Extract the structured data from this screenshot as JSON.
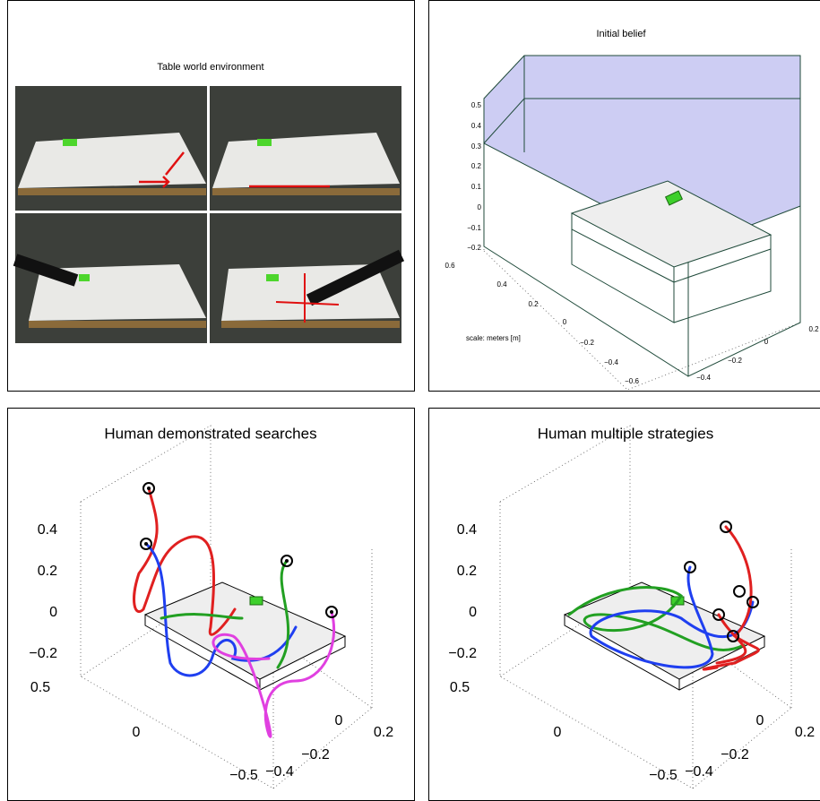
{
  "panels": [
    {
      "title": "Table world environment"
    },
    {
      "title": "Initial belief",
      "note": "scale: meters [m]",
      "z_ticks": [
        "0.5",
        "0.4",
        "0.3",
        "0.2",
        "0.1",
        "0",
        "−0.1",
        "−0.2"
      ],
      "y_ticks": [
        "0.6",
        "0.4",
        "0.2",
        "0",
        "−0.2",
        "−0.4",
        "−0.6"
      ],
      "x_ticks": [
        "−0.4",
        "−0.2",
        "0",
        "0.2"
      ]
    },
    {
      "title": "Human demonstrated searches",
      "z_ticks": [
        "0.4",
        "0.2",
        "0",
        "−0.2"
      ],
      "y_ticks": [
        "0.5",
        "0",
        "−0.5"
      ],
      "x_ticks": [
        "−0.4",
        "−0.2",
        "0",
        "0.2"
      ]
    },
    {
      "title": "Human multiple strategies",
      "z_ticks": [
        "0.4",
        "0.2",
        "0",
        "−0.2"
      ],
      "y_ticks": [
        "0.5",
        "0",
        "−0.5"
      ],
      "x_ticks": [
        "−0.4",
        "−0.2",
        "0",
        "0.2"
      ]
    }
  ]
}
